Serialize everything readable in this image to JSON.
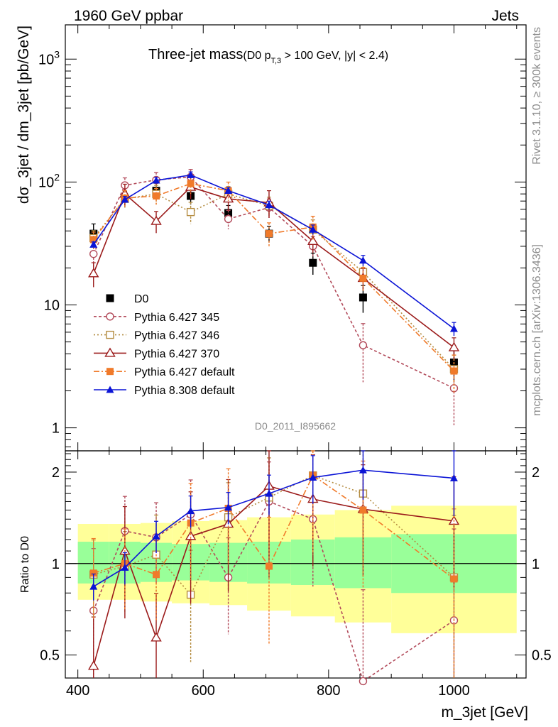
{
  "header": {
    "energy_label": "1960 GeV ppbar",
    "process_label": "Jets"
  },
  "side": {
    "rivet_label": "Rivet 3.1.10, ≥ 300k events",
    "mcplots_label": "mcplots.cern.ch [arXiv:1306.3436]"
  },
  "plot": {
    "title_main": "Three-jet mass",
    "title_cut_prefix": "(D0 p",
    "title_cut_sub": "T,3",
    "title_cut_suffix": " > 100 GeV, |y| < 2.4)",
    "analysis_id": "D0_2011_I895662"
  },
  "chart_data": {
    "type": "line",
    "x_unit_label": "m_3jet [GeV]",
    "x_bins": [
      [
        400,
        450
      ],
      [
        450,
        500
      ],
      [
        500,
        550
      ],
      [
        550,
        610
      ],
      [
        610,
        670
      ],
      [
        670,
        740
      ],
      [
        740,
        810
      ],
      [
        810,
        900
      ],
      [
        900,
        1100
      ]
    ],
    "x": [
      425,
      475,
      525,
      580,
      640,
      705,
      775,
      855,
      1000
    ],
    "xlim": [
      380,
      1115
    ],
    "xticks": [
      400,
      600,
      800,
      1000
    ],
    "top_panel": {
      "ylabel": "dσ_3jet / dm_3jet [pb/GeV]",
      "yscale": "log",
      "ylim": [
        0.65,
        1900
      ],
      "yticks": [
        {
          "v": 1,
          "label": "1"
        },
        {
          "v": 10,
          "label": "10"
        },
        {
          "v": 100,
          "label": "10^2"
        },
        {
          "v": 1000,
          "label": "10^3"
        }
      ]
    },
    "ratio_panel": {
      "ylabel": "Ratio to D0",
      "yscale": "log",
      "ylim": [
        0.42,
        2.35
      ],
      "yticks": [
        {
          "v": 0.5,
          "label": "0.5"
        },
        {
          "v": 1,
          "label": "1"
        },
        {
          "v": 2,
          "label": "2"
        }
      ],
      "band_inner": [
        [
          0.86,
          1.18
        ],
        [
          0.86,
          1.18
        ],
        [
          0.87,
          1.17
        ],
        [
          0.88,
          1.16
        ],
        [
          0.87,
          1.17
        ],
        [
          0.86,
          1.18
        ],
        [
          0.85,
          1.2
        ],
        [
          0.83,
          1.22
        ],
        [
          0.8,
          1.25
        ]
      ],
      "band_outer": [
        [
          0.76,
          1.35
        ],
        [
          0.76,
          1.35
        ],
        [
          0.75,
          1.36
        ],
        [
          0.74,
          1.38
        ],
        [
          0.73,
          1.39
        ],
        [
          0.7,
          1.42
        ],
        [
          0.67,
          1.45
        ],
        [
          0.64,
          1.5
        ],
        [
          0.59,
          1.55
        ]
      ]
    },
    "series": [
      {
        "name": "D0",
        "color": "#000000",
        "marker": "square-filled",
        "dash": "none",
        "values": [
          38,
          73,
          85,
          77,
          56,
          38,
          22,
          11.5,
          3.4
        ],
        "err": [
          0.2,
          0.15,
          0.15,
          0.15,
          0.15,
          0.15,
          0.2,
          0.25,
          0.3
        ]
      },
      {
        "name": "Pythia 6.427 345",
        "color": "#b24a5a",
        "marker": "circle-open",
        "dash": "4,3",
        "values": [
          26,
          94,
          104,
          110,
          50,
          62,
          30,
          4.7,
          2.1
        ],
        "ratio": [
          0.7,
          1.28,
          1.22,
          1.45,
          0.9,
          1.6,
          1.4,
          0.41,
          0.65
        ],
        "ratio_err": [
          0.6,
          0.3,
          0.3,
          0.3,
          0.35,
          0.35,
          0.4,
          1.0,
          1.0
        ]
      },
      {
        "name": "Pythia 6.427 346",
        "color": "#b48c40",
        "marker": "square-open",
        "dash": "2,3",
        "values": [
          35,
          73,
          80,
          57,
          80,
          64,
          41,
          18.5,
          3
        ],
        "ratio": [
          0.92,
          0.98,
          1.07,
          0.79,
          1.42,
          1.65,
          1.95,
          1.7,
          0.9
        ],
        "ratio_err": [
          0.3,
          0.3,
          0.35,
          0.4,
          0.3,
          0.35,
          0.4,
          0.4,
          0.6
        ]
      },
      {
        "name": "Pythia 6.427 370",
        "color": "#9b1b1b",
        "marker": "triangle-open",
        "dash": "none",
        "values": [
          18,
          80,
          48,
          91,
          73,
          68,
          33,
          16.5,
          4.5
        ],
        "ratio": [
          0.46,
          1.1,
          0.57,
          1.23,
          1.35,
          1.8,
          1.63,
          1.51,
          1.38
        ],
        "ratio_err": [
          0.45,
          0.4,
          0.4,
          0.4,
          0.4,
          0.5,
          0.4,
          0.4,
          0.4
        ]
      },
      {
        "name": "Pythia 6.427 default",
        "color": "#f07a2a",
        "marker": "square-filled",
        "dash": "8,3,2,3",
        "values": [
          34,
          74,
          77,
          97,
          85,
          38,
          43,
          16.5,
          2.9
        ],
        "ratio": [
          0.93,
          1.0,
          0.92,
          1.36,
          1.52,
          0.98,
          1.95,
          1.5,
          0.89
        ],
        "ratio_err": [
          0.3,
          0.3,
          0.3,
          0.35,
          0.35,
          0.45,
          0.45,
          0.45,
          0.7
        ]
      },
      {
        "name": "Pythia 8.308 default",
        "color": "#0b14d6",
        "marker": "triangle-filled",
        "dash": "none",
        "values": [
          31,
          72,
          103,
          114,
          85,
          65,
          41,
          23,
          6.4
        ],
        "ratio": [
          0.84,
          0.97,
          1.23,
          1.49,
          1.53,
          1.7,
          1.92,
          2.03,
          1.91
        ],
        "ratio_err": [
          0.1,
          0.12,
          0.12,
          0.12,
          0.12,
          0.15,
          0.18,
          0.2,
          0.25
        ]
      }
    ]
  }
}
